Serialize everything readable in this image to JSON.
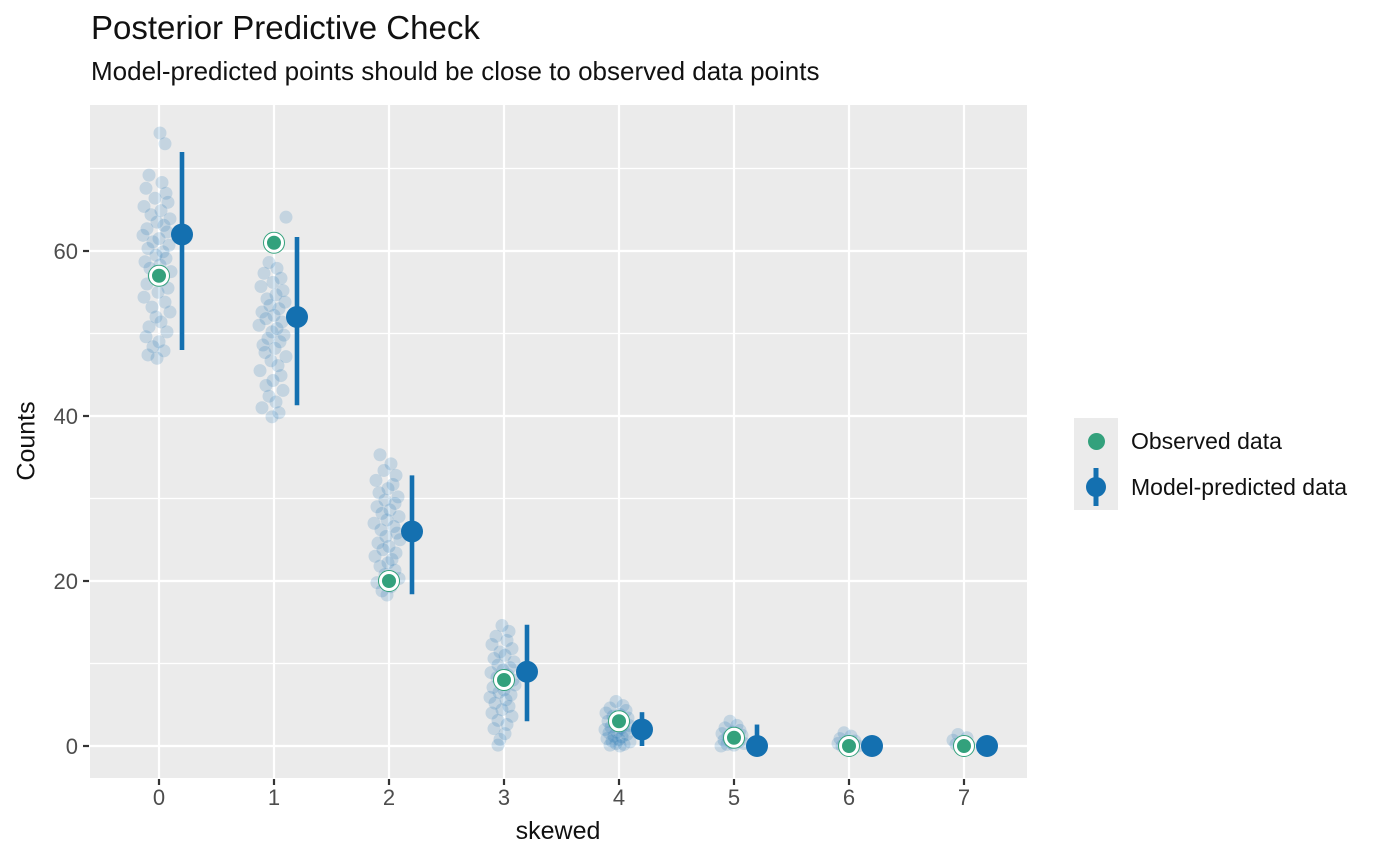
{
  "chart_data": {
    "type": "scatter",
    "title": "Posterior Predictive Check",
    "subtitle": "Model-predicted points should be close to observed data points",
    "xlabel": "skewed",
    "ylabel": "Counts",
    "x_ticks": [
      0,
      1,
      2,
      3,
      4,
      5,
      6,
      7
    ],
    "y_ticks": [
      0,
      20,
      40,
      60
    ],
    "y_minor_ticks": [
      10,
      30,
      50,
      70
    ],
    "ylim": [
      -4,
      78
    ],
    "grid": true,
    "legend_position": "right",
    "legend": [
      {
        "label": "Observed data",
        "type": "point",
        "color": "#33a17c"
      },
      {
        "label": "Model-predicted data",
        "type": "pointrange",
        "color": "#1470b0"
      }
    ],
    "colors": {
      "observed": "#33a17c",
      "predicted": "#1470b0",
      "replicate": "rgba(20,112,176,0.18)",
      "panel_background": "#ebebeb",
      "gridline": "#ffffff",
      "tick_text": "#4d4d4d",
      "tick_mark": "#333333"
    },
    "series": {
      "observed": {
        "name": "Observed data",
        "categories": [
          0,
          1,
          2,
          3,
          4,
          5,
          6,
          7
        ],
        "values": [
          57,
          61,
          20,
          8,
          3,
          1,
          0,
          0
        ]
      },
      "predicted": {
        "name": "Model-predicted data",
        "categories": [
          0,
          1,
          2,
          3,
          4,
          5,
          6,
          7
        ],
        "mean": [
          62,
          52,
          26,
          9,
          2,
          0,
          0,
          0
        ],
        "interval_low": [
          48,
          41.3,
          18.4,
          3,
          0,
          0,
          0,
          0
        ],
        "interval_high": [
          72,
          61.7,
          32.8,
          14.7,
          4.1,
          2.6,
          0.9,
          0.9
        ]
      },
      "replicates": {
        "name": "Posterior predictive draws (jitter_px, count)",
        "points_by_category": [
          [
            [
              1,
              74.3
            ],
            [
              6,
              73.0
            ],
            [
              -10,
              69.2
            ],
            [
              3,
              68.3
            ],
            [
              -13,
              67.6
            ],
            [
              7,
              67.0
            ],
            [
              -4,
              66.4
            ],
            [
              9,
              65.9
            ],
            [
              -15,
              65.4
            ],
            [
              2,
              64.9
            ],
            [
              -8,
              64.4
            ],
            [
              11,
              63.9
            ],
            [
              -2,
              63.5
            ],
            [
              5,
              63.1
            ],
            [
              -12,
              62.7
            ],
            [
              8,
              62.3
            ],
            [
              -16,
              61.9
            ],
            [
              0,
              61.5
            ],
            [
              -6,
              61.1
            ],
            [
              10,
              60.7
            ],
            [
              -11,
              60.3
            ],
            [
              4,
              59.9
            ],
            [
              -3,
              59.5
            ],
            [
              7,
              59.1
            ],
            [
              -14,
              58.7
            ],
            [
              1,
              58.3
            ],
            [
              -9,
              57.9
            ],
            [
              12,
              57.5
            ],
            [
              -5,
              57.0
            ],
            [
              3,
              56.5
            ],
            [
              -12,
              56.0
            ],
            [
              9,
              55.5
            ],
            [
              -1,
              55.0
            ],
            [
              -15,
              54.4
            ],
            [
              6,
              53.8
            ],
            [
              -7,
              53.2
            ],
            [
              11,
              52.6
            ],
            [
              -3,
              52.0
            ],
            [
              2,
              51.4
            ],
            [
              -10,
              50.8
            ],
            [
              8,
              50.2
            ],
            [
              -13,
              49.6
            ],
            [
              0,
              49.0
            ],
            [
              -6,
              48.4
            ],
            [
              5,
              47.9
            ],
            [
              -11,
              47.4
            ],
            [
              -2,
              47.0
            ]
          ],
          [
            [
              12,
              64.1
            ],
            [
              -5,
              58.6
            ],
            [
              3,
              57.9
            ],
            [
              -10,
              57.3
            ],
            [
              7,
              56.7
            ],
            [
              -1,
              56.2
            ],
            [
              -13,
              55.7
            ],
            [
              9,
              55.2
            ],
            [
              2,
              54.7
            ],
            [
              -7,
              54.2
            ],
            [
              11,
              53.8
            ],
            [
              -4,
              53.4
            ],
            [
              5,
              53.0
            ],
            [
              -12,
              52.6
            ],
            [
              0,
              52.2
            ],
            [
              -8,
              51.8
            ],
            [
              8,
              51.4
            ],
            [
              -15,
              51.0
            ],
            [
              3,
              50.6
            ],
            [
              -2,
              50.2
            ],
            [
              10,
              49.8
            ],
            [
              -6,
              49.4
            ],
            [
              6,
              49.0
            ],
            [
              -11,
              48.6
            ],
            [
              1,
              48.2
            ],
            [
              -9,
              47.7
            ],
            [
              12,
              47.2
            ],
            [
              -3,
              46.7
            ],
            [
              4,
              46.1
            ],
            [
              -14,
              45.5
            ],
            [
              7,
              44.9
            ],
            [
              -1,
              44.3
            ],
            [
              -8,
              43.7
            ],
            [
              9,
              43.1
            ],
            [
              -5,
              42.4
            ],
            [
              2,
              41.7
            ],
            [
              -12,
              41.0
            ],
            [
              5,
              40.4
            ],
            [
              -2,
              39.9
            ]
          ],
          [
            [
              -9,
              35.3
            ],
            [
              2,
              34.2
            ],
            [
              -5,
              33.4
            ],
            [
              7,
              32.8
            ],
            [
              -13,
              32.2
            ],
            [
              4,
              31.7
            ],
            [
              -1,
              31.2
            ],
            [
              -10,
              30.7
            ],
            [
              9,
              30.2
            ],
            [
              -4,
              29.8
            ],
            [
              6,
              29.4
            ],
            [
              -12,
              29.0
            ],
            [
              1,
              28.6
            ],
            [
              -7,
              28.2
            ],
            [
              10,
              27.8
            ],
            [
              -2,
              27.4
            ],
            [
              -15,
              27.0
            ],
            [
              5,
              26.6
            ],
            [
              -8,
              26.2
            ],
            [
              8,
              25.8
            ],
            [
              -3,
              25.4
            ],
            [
              11,
              25.0
            ],
            [
              -11,
              24.6
            ],
            [
              0,
              24.2
            ],
            [
              -6,
              23.8
            ],
            [
              7,
              23.4
            ],
            [
              -14,
              23.0
            ],
            [
              3,
              22.6
            ],
            [
              -1,
              22.2
            ],
            [
              -9,
              21.8
            ],
            [
              6,
              21.3
            ],
            [
              -4,
              20.8
            ],
            [
              10,
              20.3
            ],
            [
              -12,
              19.8
            ],
            [
              2,
              19.3
            ],
            [
              -7,
              18.8
            ],
            [
              -2,
              18.3
            ]
          ],
          [
            [
              -2,
              14.6
            ],
            [
              5,
              13.9
            ],
            [
              -8,
              13.3
            ],
            [
              3,
              12.8
            ],
            [
              -12,
              12.3
            ],
            [
              8,
              11.8
            ],
            [
              -4,
              11.4
            ],
            [
              1,
              11.0
            ],
            [
              -10,
              10.6
            ],
            [
              10,
              10.2
            ],
            [
              -6,
              9.8
            ],
            [
              6,
              9.5
            ],
            [
              -1,
              9.2
            ],
            [
              -13,
              8.9
            ],
            [
              4,
              8.6
            ],
            [
              -7,
              8.3
            ],
            [
              9,
              8.0
            ],
            [
              -3,
              7.7
            ],
            [
              11,
              7.4
            ],
            [
              -11,
              7.1
            ],
            [
              0,
              6.8
            ],
            [
              -5,
              6.5
            ],
            [
              7,
              6.2
            ],
            [
              -14,
              5.9
            ],
            [
              2,
              5.6
            ],
            [
              -9,
              5.2
            ],
            [
              5,
              4.8
            ],
            [
              -2,
              4.4
            ],
            [
              -12,
              4.0
            ],
            [
              8,
              3.6
            ],
            [
              -6,
              3.1
            ],
            [
              3,
              2.6
            ],
            [
              -10,
              2.1
            ],
            [
              1,
              1.5
            ],
            [
              -4,
              0.8
            ],
            [
              -6,
              0.1
            ]
          ],
          [
            [
              -3,
              5.4
            ],
            [
              4,
              4.9
            ],
            [
              -9,
              4.6
            ],
            [
              7,
              4.3
            ],
            [
              -13,
              4.0
            ],
            [
              1,
              3.8
            ],
            [
              -6,
              3.6
            ],
            [
              9,
              3.4
            ],
            [
              -1,
              3.2
            ],
            [
              -11,
              3.0
            ],
            [
              5,
              2.8
            ],
            [
              -4,
              2.7
            ],
            [
              10,
              2.5
            ],
            [
              -8,
              2.3
            ],
            [
              2,
              2.2
            ],
            [
              -14,
              2.0
            ],
            [
              6,
              1.9
            ],
            [
              -2,
              1.7
            ],
            [
              -10,
              1.6
            ],
            [
              8,
              1.4
            ],
            [
              -5,
              1.2
            ],
            [
              3,
              1.1
            ],
            [
              -12,
              0.9
            ],
            [
              0,
              0.8
            ],
            [
              -7,
              0.6
            ],
            [
              11,
              0.5
            ],
            [
              -3,
              0.3
            ],
            [
              5,
              0.2
            ],
            [
              -9,
              0.1
            ],
            [
              1,
              0.0
            ]
          ],
          [
            [
              -4,
              3.0
            ],
            [
              3,
              2.5
            ],
            [
              -9,
              2.2
            ],
            [
              6,
              1.9
            ],
            [
              -1,
              1.7
            ],
            [
              -12,
              1.5
            ],
            [
              8,
              1.3
            ],
            [
              -6,
              1.1
            ],
            [
              2,
              0.9
            ],
            [
              -10,
              0.7
            ],
            [
              5,
              0.5
            ],
            [
              -3,
              0.4
            ],
            [
              10,
              0.3
            ],
            [
              -7,
              0.2
            ],
            [
              0,
              0.1
            ],
            [
              -13,
              0.0
            ]
          ],
          [
            [
              -5,
              1.6
            ],
            [
              2,
              1.2
            ],
            [
              -9,
              0.9
            ],
            [
              6,
              0.6
            ],
            [
              -1,
              0.4
            ],
            [
              -11,
              0.3
            ],
            [
              4,
              0.1
            ],
            [
              -7,
              0.0
            ],
            [
              9,
              0.0
            ]
          ],
          [
            [
              -6,
              1.4
            ],
            [
              3,
              1.0
            ],
            [
              -11,
              0.7
            ],
            [
              1,
              0.4
            ],
            [
              -8,
              0.2
            ],
            [
              5,
              0.1
            ],
            [
              -2,
              0.0
            ]
          ]
        ]
      }
    }
  }
}
